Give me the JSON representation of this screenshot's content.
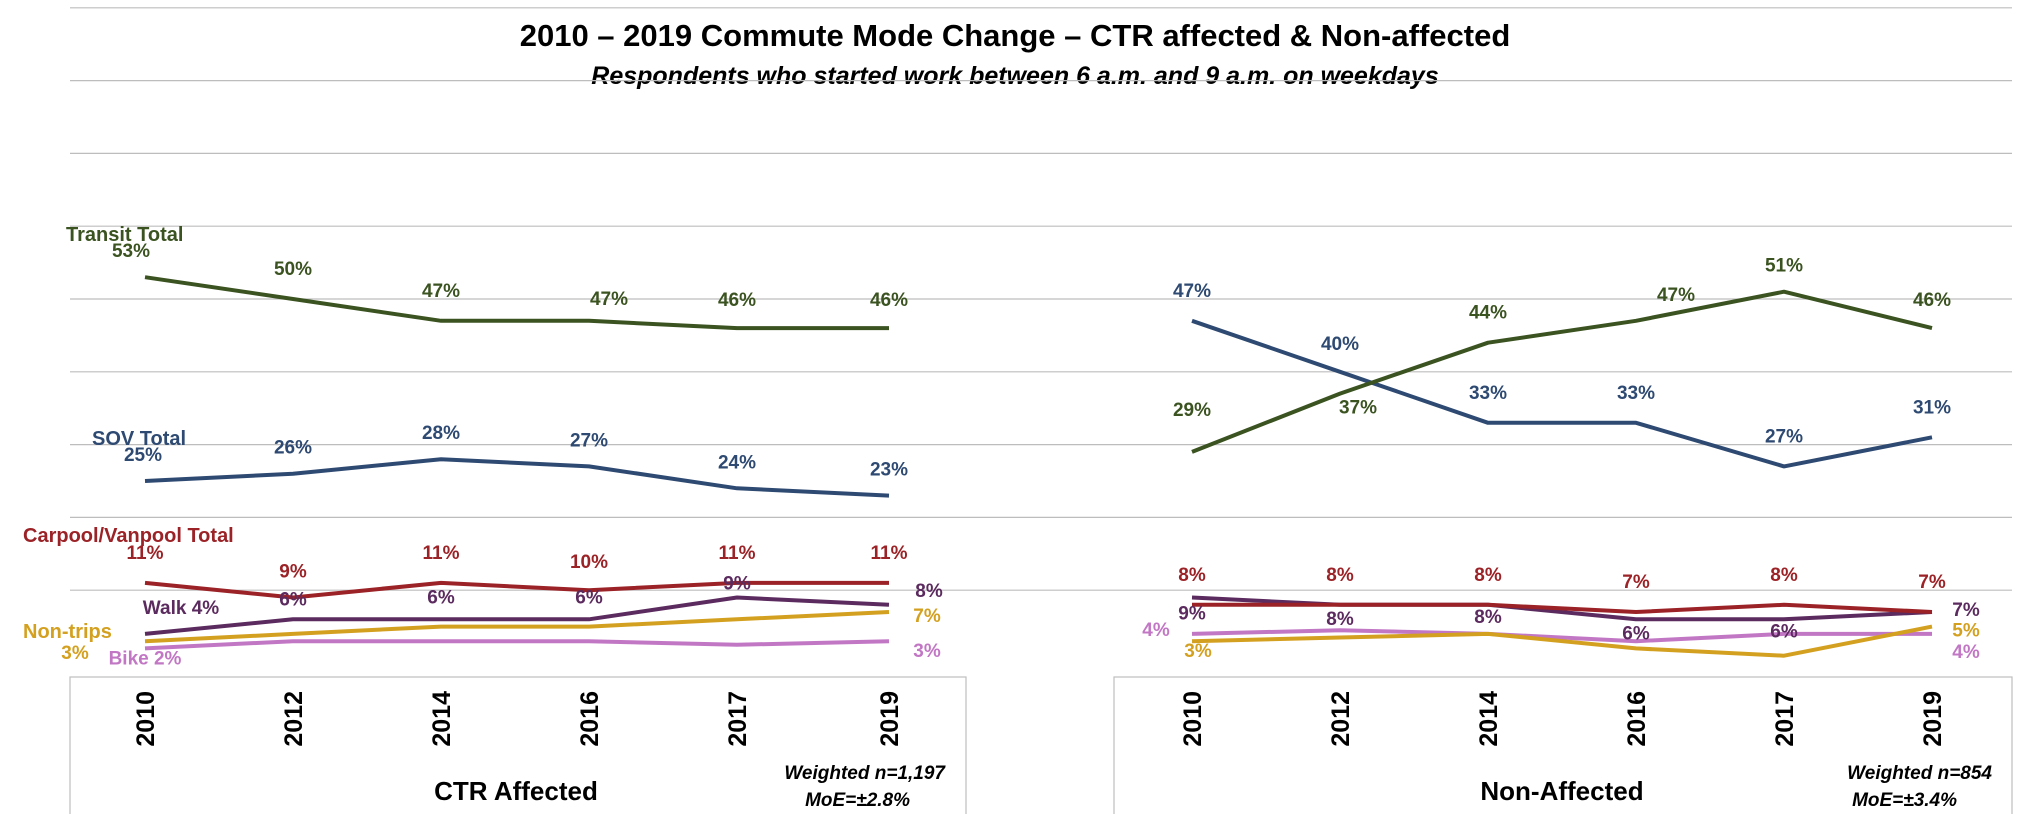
{
  "chart_data": {
    "type": "line",
    "title": "2010 – 2019 Commute Mode Change – CTR affected & Non-affected",
    "subtitle": "Respondents who started work between 6 a.m. and 9 a.m. on weekdays",
    "ylim": [
      0,
      100
    ],
    "grid": true,
    "panels": [
      {
        "name": "CTR Affected",
        "categories": [
          "2010",
          "2012",
          "2014",
          "2016",
          "2017",
          "2019"
        ],
        "note": [
          "Weighted n=1,197",
          "MoE=±2.8%"
        ],
        "series": [
          {
            "name": "Transit Total",
            "color": "#3b5320",
            "values": [
              53,
              50,
              47,
              47,
              46,
              46
            ],
            "labels": [
              "53%",
              "50%",
              "47%",
              "47%",
              "46%",
              "46%"
            ]
          },
          {
            "name": "SOV Total",
            "color": "#2e4a72",
            "values": [
              25,
              26,
              28,
              27,
              24,
              23
            ],
            "labels": [
              "25%",
              "26%",
              "28%",
              "27%",
              "24%",
              "23%"
            ]
          },
          {
            "name": "Carpool/Vanpool Total",
            "color": "#9b2226",
            "values": [
              11,
              9,
              11,
              10,
              11,
              11
            ],
            "labels": [
              "11%",
              "9%",
              "11%",
              "10%",
              "11%",
              "11%"
            ]
          },
          {
            "name": "Walk",
            "color": "#5b2a5e",
            "values": [
              4,
              6,
              6,
              6,
              9,
              8
            ],
            "labels": [
              "Walk 4%",
              "6%",
              "6%",
              "6%",
              "9%",
              "8%"
            ]
          },
          {
            "name": "Non-trips",
            "color": "#d4a020",
            "values": [
              3,
              4,
              5,
              5,
              6,
              7
            ],
            "labels": [
              "3%",
              "",
              "",
              "",
              "",
              "7%"
            ]
          },
          {
            "name": "Bike",
            "color": "#c277c5",
            "values": [
              2,
              3,
              3,
              3,
              2.5,
              3
            ],
            "labels": [
              "Bike 2%",
              "",
              "",
              "",
              "",
              "3%"
            ]
          }
        ]
      },
      {
        "name": "Non-Affected",
        "categories": [
          "2010",
          "2012",
          "2014",
          "2016",
          "2017",
          "2019"
        ],
        "note": [
          "Weighted n=854",
          "MoE=±3.4%"
        ],
        "series": [
          {
            "name": "Transit Total",
            "color": "#3b5320",
            "values": [
              29,
              37,
              44,
              47,
              51,
              46
            ],
            "labels": [
              "29%",
              "37%",
              "44%",
              "47%",
              "51%",
              "46%"
            ]
          },
          {
            "name": "SOV Total",
            "color": "#2e4a72",
            "values": [
              47,
              40,
              33,
              33,
              27,
              31
            ],
            "labels": [
              "47%",
              "40%",
              "33%",
              "33%",
              "27%",
              "31%"
            ]
          },
          {
            "name": "Carpool/Vanpool Total",
            "color": "#9b2226",
            "values": [
              8,
              8,
              8,
              7,
              8,
              7
            ],
            "labels": [
              "8%",
              "8%",
              "8%",
              "7%",
              "8%",
              "7%"
            ]
          },
          {
            "name": "Walk",
            "color": "#5b2a5e",
            "values": [
              9,
              8,
              8,
              6,
              6,
              7
            ],
            "labels": [
              "9%",
              "8%",
              "8%",
              "6%",
              "6%",
              "7%"
            ]
          },
          {
            "name": "Non-trips",
            "color": "#d4a020",
            "values": [
              3,
              3.5,
              4,
              2,
              1,
              5
            ],
            "labels": [
              "3%",
              "",
              "",
              "",
              "",
              "5%"
            ]
          },
          {
            "name": "Bike",
            "color": "#c277c5",
            "values": [
              4,
              4.5,
              4,
              3,
              4,
              4
            ],
            "labels": [
              "4%",
              "",
              "",
              "",
              "",
              "4%"
            ]
          }
        ]
      }
    ]
  }
}
